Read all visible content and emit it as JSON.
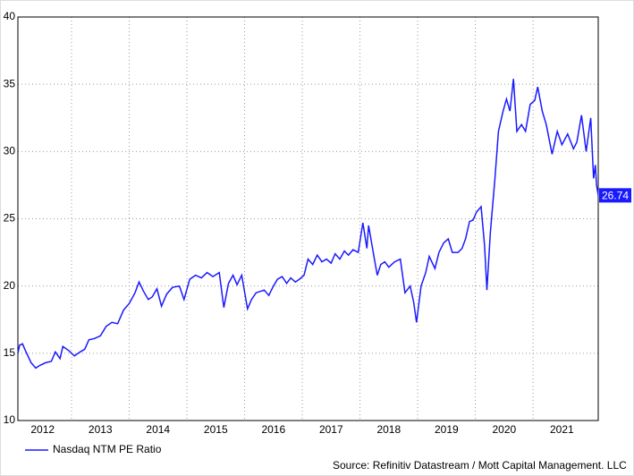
{
  "chart_data": {
    "type": "line",
    "x": [
      2012.07,
      2012.1,
      2012.15,
      2012.2,
      2012.3,
      2012.38,
      2012.45,
      2012.55,
      2012.65,
      2012.72,
      2012.8,
      2012.85,
      2012.95,
      2013.05,
      2013.15,
      2013.23,
      2013.3,
      2013.4,
      2013.5,
      2013.6,
      2013.7,
      2013.8,
      2013.9,
      2014.0,
      2014.1,
      2014.17,
      2014.25,
      2014.33,
      2014.4,
      2014.48,
      2014.56,
      2014.65,
      2014.75,
      2014.87,
      2014.95,
      2015.05,
      2015.15,
      2015.25,
      2015.35,
      2015.45,
      2015.56,
      2015.64,
      2015.72,
      2015.8,
      2015.87,
      2015.95,
      2016.05,
      2016.12,
      2016.2,
      2016.34,
      2016.42,
      2016.5,
      2016.57,
      2016.65,
      2016.73,
      2016.8,
      2016.88,
      2016.95,
      2017.03,
      2017.1,
      2017.18,
      2017.26,
      2017.34,
      2017.42,
      2017.5,
      2017.57,
      2017.65,
      2017.73,
      2017.8,
      2017.88,
      2017.97,
      2018.05,
      2018.12,
      2018.15,
      2018.25,
      2018.3,
      2018.36,
      2018.43,
      2018.5,
      2018.6,
      2018.7,
      2018.78,
      2018.87,
      2018.93,
      2018.98,
      2019.06,
      2019.14,
      2019.2,
      2019.3,
      2019.37,
      2019.45,
      2019.53,
      2019.6,
      2019.7,
      2019.77,
      2019.83,
      2019.9,
      2019.96,
      2020.02,
      2020.1,
      2020.16,
      2020.2,
      2020.26,
      2020.34,
      2020.4,
      2020.48,
      2020.54,
      2020.6,
      2020.66,
      2020.72,
      2020.8,
      2020.87,
      2020.95,
      2021.03,
      2021.08,
      2021.16,
      2021.23,
      2021.33,
      2021.42,
      2021.5,
      2021.6,
      2021.7,
      2021.76,
      2021.84,
      2021.92,
      2022.0,
      2022.05,
      2022.08,
      2022.1,
      2022.13
    ],
    "series": [
      {
        "name": "Nasdaq NTM PE Ratio",
        "color": "#1a1aff",
        "values": [
          15.0,
          15.6,
          15.7,
          15.2,
          14.3,
          13.9,
          14.1,
          14.3,
          14.4,
          15.1,
          14.6,
          15.5,
          15.2,
          14.8,
          15.1,
          15.3,
          16.0,
          16.1,
          16.3,
          17.0,
          17.3,
          17.2,
          18.2,
          18.7,
          19.5,
          20.3,
          19.6,
          19.0,
          19.2,
          19.8,
          18.5,
          19.4,
          19.9,
          20.0,
          19.0,
          20.5,
          20.8,
          20.6,
          21.0,
          20.7,
          21.0,
          18.4,
          20.2,
          20.8,
          20.1,
          20.8,
          18.3,
          19.0,
          19.5,
          19.7,
          19.3,
          20.0,
          20.5,
          20.7,
          20.2,
          20.6,
          20.3,
          20.5,
          20.8,
          22.0,
          21.6,
          22.3,
          21.8,
          22.0,
          21.7,
          22.4,
          22.0,
          22.6,
          22.3,
          22.7,
          22.5,
          24.7,
          22.8,
          24.5,
          22.0,
          20.8,
          21.6,
          21.8,
          21.4,
          21.8,
          22.0,
          19.5,
          20.0,
          18.8,
          17.3,
          20.0,
          21.0,
          22.2,
          21.3,
          22.5,
          23.2,
          23.5,
          22.5,
          22.5,
          22.8,
          23.5,
          24.8,
          24.9,
          25.5,
          25.9,
          23.0,
          19.7,
          24.0,
          28.0,
          31.5,
          33.0,
          33.9,
          33.0,
          35.4,
          31.5,
          32.0,
          31.5,
          33.5,
          33.8,
          34.8,
          33.0,
          32.0,
          29.8,
          31.5,
          30.5,
          31.3,
          30.2,
          30.7,
          32.7,
          30.0,
          32.5,
          28.0,
          29.0,
          27.5,
          26.74
        ]
      }
    ],
    "xlim": [
      2012.07,
      2022.13
    ],
    "xticks": [
      2012,
      2013,
      2014,
      2015,
      2016,
      2017,
      2018,
      2019,
      2020,
      2021
    ],
    "ylim": [
      10,
      40
    ],
    "yticks": [
      10,
      15,
      20,
      25,
      30,
      35,
      40
    ],
    "grid": true,
    "source": "Source: Refinitiv Datastream / Mott Capital Management. LLC"
  }
}
